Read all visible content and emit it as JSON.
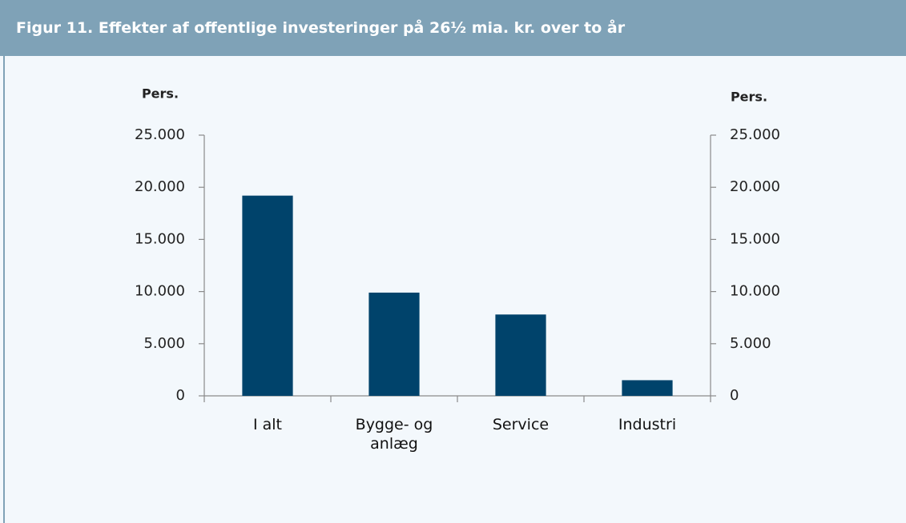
{
  "chart_data": {
    "type": "bar",
    "title": "Figur 11. Effekter af offentlige investeringer på 26½ mia. kr. over to år",
    "ylabel": "Pers.",
    "y2label": "Pers.",
    "categories": [
      "I alt",
      "Bygge- og anlæg",
      "Service",
      "Industri"
    ],
    "values": [
      19200,
      9900,
      7800,
      1500
    ],
    "color": "#00436b",
    "ylim": [
      0,
      25000
    ],
    "yticks": [
      0,
      {
        "value": 5000,
        "label": "5.000"
      },
      {
        "value": 10000,
        "label": "10.000"
      },
      {
        "value": 15000,
        "label": "15.000"
      },
      {
        "value": 20000,
        "label": "20.000"
      },
      {
        "value": 25000,
        "label": "25.000"
      }
    ],
    "y2lim": [
      0,
      25000
    ],
    "y2ticks": [
      0,
      {
        "value": 5000,
        "label": "5.000"
      },
      {
        "value": 10000,
        "label": "10.000"
      },
      {
        "value": 15000,
        "label": "15.000"
      },
      {
        "value": 20000,
        "label": "20.000"
      },
      {
        "value": 25000,
        "label": "25.000"
      }
    ],
    "grid": false
  }
}
